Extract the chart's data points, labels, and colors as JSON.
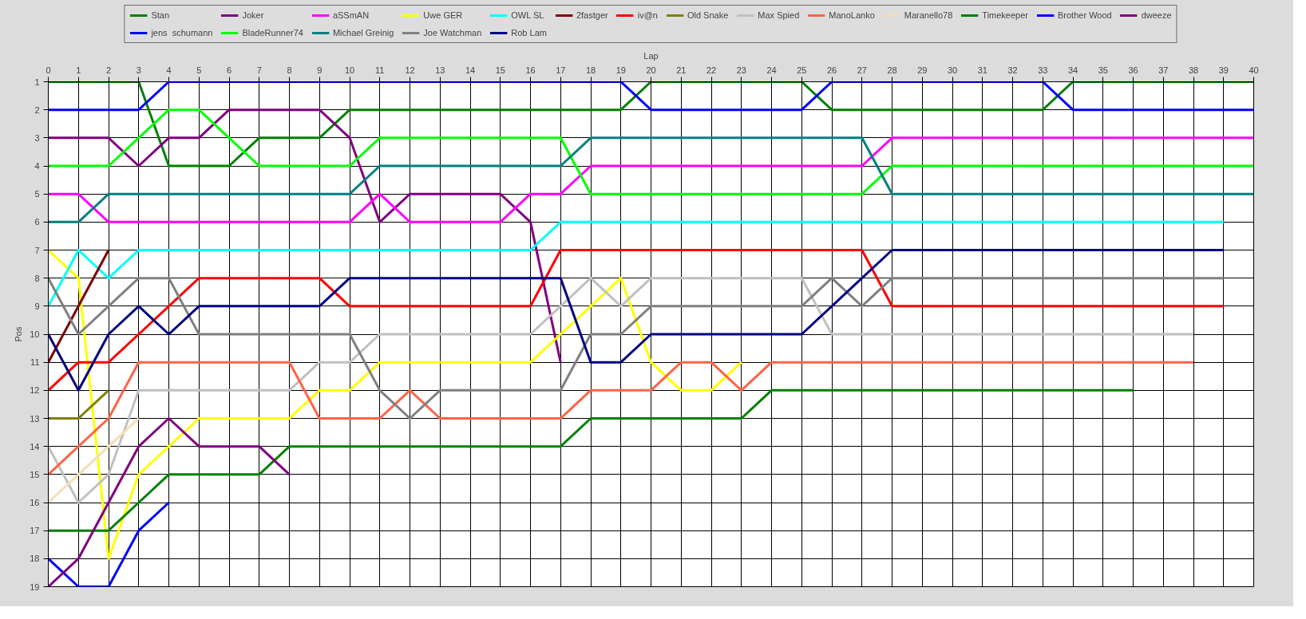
{
  "chart_data": {
    "type": "line",
    "xlabel": "Lap",
    "ylabel": "Pos",
    "x": [
      0,
      1,
      2,
      3,
      4,
      5,
      6,
      7,
      8,
      9,
      10,
      11,
      12,
      13,
      14,
      15,
      16,
      17,
      18,
      19,
      20,
      21,
      22,
      23,
      24,
      25,
      26,
      27,
      28,
      29,
      30,
      31,
      32,
      33,
      34,
      35,
      36,
      37,
      38,
      39,
      40
    ],
    "xlim": [
      0,
      40
    ],
    "xticks": [
      0,
      1,
      2,
      3,
      4,
      5,
      6,
      7,
      8,
      9,
      10,
      11,
      12,
      13,
      14,
      15,
      16,
      17,
      18,
      19,
      20,
      21,
      22,
      23,
      24,
      25,
      26,
      27,
      28,
      29,
      30,
      31,
      32,
      33,
      34,
      35,
      36,
      37,
      38,
      39,
      40
    ],
    "ylim": [
      19,
      1
    ],
    "yticks": [
      1,
      2,
      3,
      4,
      5,
      6,
      7,
      8,
      9,
      10,
      11,
      12,
      13,
      14,
      15,
      16,
      17,
      18,
      19
    ],
    "grid": true,
    "legend": "top",
    "line_style": "solid",
    "series": [
      {
        "name": "Stan",
        "color": "#008000",
        "values": [
          1,
          1,
          1,
          1,
          4,
          4,
          4,
          3,
          3,
          3,
          2,
          2,
          2,
          2,
          2,
          2,
          2,
          2,
          2,
          2,
          1,
          1,
          1,
          1,
          1,
          1,
          2,
          2,
          2,
          2,
          2,
          2,
          2,
          2,
          1,
          1,
          1,
          1,
          1,
          1,
          1
        ]
      },
      {
        "name": "Joker",
        "color": "#800080",
        "values": [
          3,
          3,
          3,
          4,
          3,
          3,
          2,
          2,
          2,
          2,
          3,
          6,
          5,
          5,
          5,
          5,
          6,
          11,
          null,
          null,
          null,
          null,
          null,
          null,
          null,
          null,
          null,
          null,
          null,
          null,
          null,
          null,
          null,
          null,
          null,
          null,
          null,
          null,
          null,
          null,
          null
        ]
      },
      {
        "name": "aSSmAN",
        "color": "#ff00ff",
        "values": [
          5,
          5,
          6,
          6,
          6,
          6,
          6,
          6,
          6,
          6,
          6,
          5,
          6,
          6,
          6,
          6,
          5,
          5,
          4,
          4,
          4,
          4,
          4,
          4,
          4,
          4,
          4,
          4,
          3,
          3,
          3,
          3,
          3,
          3,
          3,
          3,
          3,
          3,
          3,
          3,
          3
        ]
      },
      {
        "name": "Uwe GER",
        "color": "#ffff00",
        "values": [
          7,
          8,
          18,
          15,
          14,
          13,
          13,
          13,
          13,
          12,
          12,
          11,
          11,
          11,
          11,
          11,
          11,
          10,
          9,
          8,
          11,
          12,
          12,
          11,
          null,
          null,
          null,
          null,
          null,
          null,
          null,
          null,
          null,
          null,
          null,
          null,
          null,
          null,
          null,
          null,
          null
        ]
      },
      {
        "name": "OWL SL",
        "color": "#00ffff",
        "values": [
          9,
          7,
          8,
          7,
          7,
          7,
          7,
          7,
          7,
          7,
          7,
          7,
          7,
          7,
          7,
          7,
          7,
          6,
          6,
          6,
          6,
          6,
          6,
          6,
          6,
          6,
          6,
          6,
          6,
          6,
          6,
          6,
          6,
          6,
          6,
          6,
          6,
          6,
          6,
          6,
          null
        ]
      },
      {
        "name": "2fastger",
        "color": "#800000",
        "values": [
          11,
          9,
          7,
          null,
          null,
          null,
          null,
          null,
          null,
          null,
          null,
          null,
          null,
          null,
          null,
          null,
          null,
          null,
          null,
          null,
          null,
          null,
          null,
          null,
          null,
          null,
          null,
          null,
          null,
          null,
          null,
          null,
          null,
          null,
          null,
          null,
          null,
          null,
          null,
          null,
          null
        ]
      },
      {
        "name": "iv@n",
        "color": "#ff0000",
        "values": [
          12,
          11,
          11,
          10,
          9,
          8,
          8,
          8,
          8,
          8,
          9,
          9,
          9,
          9,
          9,
          9,
          9,
          7,
          7,
          7,
          7,
          7,
          7,
          7,
          7,
          7,
          7,
          7,
          9,
          9,
          9,
          9,
          9,
          9,
          9,
          9,
          9,
          9,
          9,
          9,
          null
        ]
      },
      {
        "name": "Old Snake",
        "color": "#808000",
        "values": [
          13,
          13,
          12,
          null,
          null,
          null,
          null,
          null,
          null,
          null,
          null,
          null,
          null,
          null,
          null,
          null,
          null,
          null,
          null,
          null,
          null,
          null,
          null,
          null,
          null,
          null,
          null,
          null,
          null,
          null,
          null,
          null,
          null,
          null,
          null,
          null,
          null,
          null,
          null,
          null,
          null
        ]
      },
      {
        "name": "Max Spied",
        "color": "#c0c0c0",
        "values": [
          14,
          16,
          15,
          12,
          12,
          12,
          12,
          12,
          12,
          11,
          11,
          10,
          10,
          10,
          10,
          10,
          10,
          9,
          8,
          9,
          8,
          8,
          8,
          8,
          8,
          8,
          10,
          10,
          10,
          10,
          10,
          10,
          10,
          10,
          10,
          10,
          10,
          10,
          10,
          null,
          null
        ]
      },
      {
        "name": "ManoLanko",
        "color": "#ff6347",
        "values": [
          15,
          14,
          13,
          11,
          11,
          11,
          11,
          11,
          11,
          13,
          13,
          13,
          12,
          13,
          13,
          13,
          13,
          13,
          12,
          12,
          12,
          11,
          11,
          12,
          11,
          11,
          11,
          11,
          11,
          11,
          11,
          11,
          11,
          11,
          11,
          11,
          11,
          11,
          11,
          null,
          null
        ]
      },
      {
        "name": "Maranello78",
        "color": "#f5deb3",
        "values": [
          16,
          15,
          14,
          13,
          null,
          null,
          null,
          null,
          null,
          null,
          null,
          null,
          null,
          null,
          null,
          null,
          null,
          null,
          null,
          null,
          null,
          null,
          null,
          null,
          null,
          null,
          null,
          null,
          null,
          null,
          null,
          null,
          null,
          null,
          null,
          null,
          null,
          null,
          null,
          null,
          null
        ]
      },
      {
        "name": "Timekeeper",
        "color": "#008000",
        "values": [
          17,
          17,
          17,
          16,
          15,
          15,
          15,
          15,
          14,
          14,
          14,
          14,
          14,
          14,
          14,
          14,
          14,
          14,
          13,
          13,
          13,
          13,
          13,
          13,
          12,
          12,
          12,
          12,
          12,
          12,
          12,
          12,
          12,
          12,
          12,
          12,
          12,
          null,
          null,
          null,
          null
        ]
      },
      {
        "name": "Brother Wood",
        "color": "#0000ff",
        "values": [
          18,
          19,
          19,
          17,
          16,
          null,
          null,
          null,
          null,
          null,
          null,
          null,
          null,
          null,
          null,
          null,
          null,
          null,
          null,
          null,
          null,
          null,
          null,
          null,
          null,
          null,
          null,
          null,
          null,
          null,
          null,
          null,
          null,
          null,
          null,
          null,
          null,
          null,
          null,
          null,
          null
        ]
      },
      {
        "name": "dweeze",
        "color": "#800080",
        "values": [
          19,
          18,
          16,
          14,
          13,
          14,
          14,
          14,
          15,
          null,
          null,
          null,
          null,
          null,
          null,
          null,
          null,
          null,
          null,
          null,
          null,
          null,
          null,
          null,
          null,
          null,
          null,
          null,
          null,
          null,
          null,
          null,
          null,
          null,
          null,
          null,
          null,
          null,
          null,
          null,
          null
        ]
      },
      {
        "name": "jens  schumann",
        "color": "#0000ff",
        "values": [
          2,
          2,
          2,
          2,
          1,
          1,
          1,
          1,
          1,
          1,
          1,
          1,
          1,
          1,
          1,
          1,
          1,
          1,
          1,
          1,
          2,
          2,
          2,
          2,
          2,
          2,
          1,
          1,
          1,
          1,
          1,
          1,
          1,
          1,
          2,
          2,
          2,
          2,
          2,
          2,
          2
        ]
      },
      {
        "name": "BladeRunner74",
        "color": "#00ff00",
        "values": [
          4,
          4,
          4,
          3,
          2,
          2,
          3,
          4,
          4,
          4,
          4,
          3,
          3,
          3,
          3,
          3,
          3,
          3,
          5,
          5,
          5,
          5,
          5,
          5,
          5,
          5,
          5,
          5,
          4,
          4,
          4,
          4,
          4,
          4,
          4,
          4,
          4,
          4,
          4,
          4,
          4
        ]
      },
      {
        "name": "Michael Greinig",
        "color": "#008080",
        "values": [
          6,
          6,
          5,
          5,
          5,
          5,
          5,
          5,
          5,
          5,
          5,
          4,
          4,
          4,
          4,
          4,
          4,
          4,
          3,
          3,
          3,
          3,
          3,
          3,
          3,
          3,
          3,
          3,
          5,
          5,
          5,
          5,
          5,
          5,
          5,
          5,
          5,
          5,
          5,
          5,
          5
        ]
      },
      {
        "name": "Joe Watchman",
        "color": "#808080",
        "values": [
          8,
          10,
          9,
          8,
          8,
          10,
          10,
          10,
          10,
          10,
          10,
          12,
          13,
          12,
          12,
          12,
          12,
          12,
          10,
          10,
          9,
          9,
          9,
          9,
          9,
          9,
          8,
          9,
          8,
          8,
          8,
          8,
          8,
          8,
          8,
          8,
          8,
          8,
          8,
          8,
          null
        ]
      },
      {
        "name": "Rob Lam",
        "color": "#000080",
        "values": [
          10,
          12,
          10,
          9,
          10,
          9,
          9,
          9,
          9,
          9,
          8,
          8,
          8,
          8,
          8,
          8,
          8,
          8,
          11,
          11,
          10,
          10,
          10,
          10,
          10,
          10,
          9,
          8,
          7,
          7,
          7,
          7,
          7,
          7,
          7,
          7,
          7,
          7,
          7,
          7,
          null
        ]
      }
    ]
  }
}
